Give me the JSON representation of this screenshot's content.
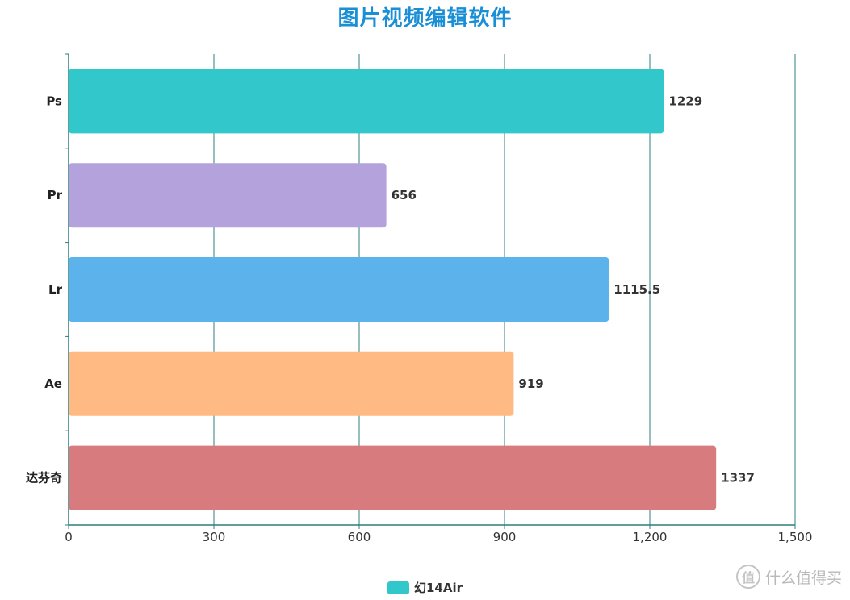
{
  "chart_data": {
    "type": "bar",
    "orientation": "horizontal",
    "title": "图片视频编辑软件",
    "categories": [
      "Ps",
      "Pr",
      "Lr",
      "Ae",
      "达芬奇"
    ],
    "series": [
      {
        "name": "幻14Air",
        "values": [
          1229,
          656,
          1115.5,
          919,
          1337
        ],
        "value_labels": [
          "1229",
          "656",
          "1115.5",
          "919",
          "1337"
        ],
        "colors": [
          "#32c7ca",
          "#b3a2dc",
          "#5cb2eb",
          "#ffb983",
          "#d87b7e"
        ]
      }
    ],
    "xlim": [
      0,
      1500
    ],
    "x_ticks": [
      0,
      300,
      600,
      900,
      1200,
      1500
    ],
    "x_tick_labels": [
      "0",
      "300",
      "600",
      "900",
      "1,200",
      "1,500"
    ],
    "xlabel": "",
    "ylabel": "",
    "grid": true,
    "legend_position": "bottom-center"
  },
  "legend": {
    "label": "幻14Air",
    "color": "#32c7ca"
  },
  "watermark": {
    "logo_char": "值",
    "text": "什么值得买"
  },
  "style": {
    "title_color": "#1a8fd6",
    "axis_color": "#2f7f7f",
    "grid_color": "#2f7f7f"
  }
}
